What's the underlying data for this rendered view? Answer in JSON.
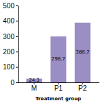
{
  "chart_data": {
    "type": "bar",
    "xlabel": "Treatment group",
    "categories": [
      "M",
      "P1",
      "P2"
    ],
    "values": [
      24.3,
      298.7,
      388.7
    ],
    "color": "#9B8EC4",
    "ylim": [
      0,
      500
    ],
    "yticks": [
      0,
      100,
      200,
      300,
      400,
      500
    ],
    "grid": false,
    "data_labels": true
  }
}
